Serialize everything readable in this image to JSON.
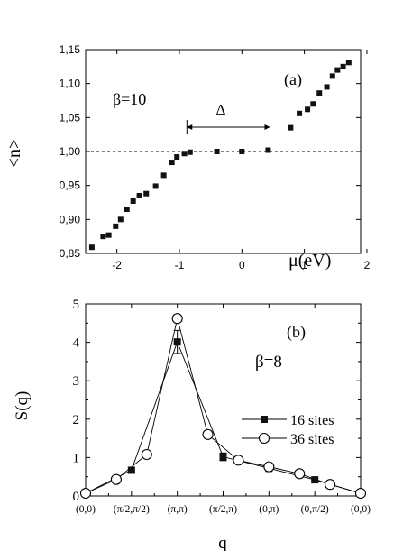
{
  "chart_data": [
    {
      "panel": "(a)",
      "type": "scatter",
      "title": "",
      "xlabel": "μ(eV)",
      "ylabel": "<n>",
      "xlim": [
        -2.5,
        1.9
      ],
      "ylim": [
        0.85,
        1.15
      ],
      "x_ticks": [
        -2,
        -1,
        0,
        1,
        2
      ],
      "x_tick_labels": [
        "-2",
        "-1",
        "0",
        "1",
        "2"
      ],
      "y_ticks": [
        0.85,
        0.9,
        0.95,
        1.0,
        1.05,
        1.1,
        1.15
      ],
      "y_tick_labels": [
        "0,85",
        "0,90",
        "0,95",
        "1,00",
        "1,05",
        "1,10",
        "1,15"
      ],
      "annotations": {
        "beta": "β=10",
        "gap": "Δ",
        "panel_label": "(a)"
      },
      "reference_line_y": 1.0,
      "gap_range": [
        -0.88,
        0.45
      ],
      "marker_color": "#111111",
      "points": [
        [
          -2.4,
          0.859
        ],
        [
          -2.22,
          0.875
        ],
        [
          -2.13,
          0.877
        ],
        [
          -2.02,
          0.89
        ],
        [
          -1.94,
          0.9
        ],
        [
          -1.84,
          0.915
        ],
        [
          -1.74,
          0.927
        ],
        [
          -1.64,
          0.935
        ],
        [
          -1.53,
          0.938
        ],
        [
          -1.38,
          0.949
        ],
        [
          -1.25,
          0.965
        ],
        [
          -1.12,
          0.984
        ],
        [
          -1.04,
          0.992
        ],
        [
          -0.92,
          0.997
        ],
        [
          -0.83,
          0.999
        ],
        [
          -0.4,
          1.0
        ],
        [
          0.0,
          1.0
        ],
        [
          0.42,
          1.002
        ],
        [
          0.78,
          1.035
        ],
        [
          0.92,
          1.056
        ],
        [
          1.05,
          1.062
        ],
        [
          1.14,
          1.07
        ],
        [
          1.24,
          1.086
        ],
        [
          1.36,
          1.095
        ],
        [
          1.45,
          1.111
        ],
        [
          1.53,
          1.12
        ],
        [
          1.62,
          1.125
        ],
        [
          1.71,
          1.131
        ]
      ]
    },
    {
      "panel": "(b)",
      "type": "line",
      "title": "",
      "xlabel": "q",
      "ylabel": "S(q)",
      "ylim": [
        0,
        5
      ],
      "y_ticks": [
        0,
        1,
        2,
        3,
        4,
        5
      ],
      "y_tick_labels": [
        "0",
        "1",
        "2",
        "3",
        "4",
        "5"
      ],
      "x_tick_labels": [
        "(0,0)",
        "(π/2,π/2)",
        "(π,π)",
        "(π/2,π)",
        "(0,π)",
        "(0,π/2)",
        "(0,0)"
      ],
      "annotations": {
        "beta": "β=8",
        "panel_label": "(b)"
      },
      "series": [
        {
          "name": "16 sites",
          "marker": "filled-square",
          "x": [
            0,
            1,
            2,
            3,
            4,
            5,
            6
          ],
          "values": [
            0.07,
            0.67,
            4.01,
            1.02,
            0.72,
            0.42,
            0.07
          ],
          "errors": [
            0.0,
            0.05,
            0.3,
            0.1,
            0.05,
            0.0,
            0.0
          ]
        },
        {
          "name": "36 sites",
          "marker": "open-circle",
          "x": [
            0,
            0.6667,
            1.3333,
            2,
            2.6667,
            3.3333,
            4,
            4.6667,
            5.3333,
            6
          ],
          "values": [
            0.07,
            0.43,
            1.08,
            4.62,
            1.6,
            0.93,
            0.76,
            0.58,
            0.3,
            0.07
          ]
        }
      ]
    }
  ]
}
